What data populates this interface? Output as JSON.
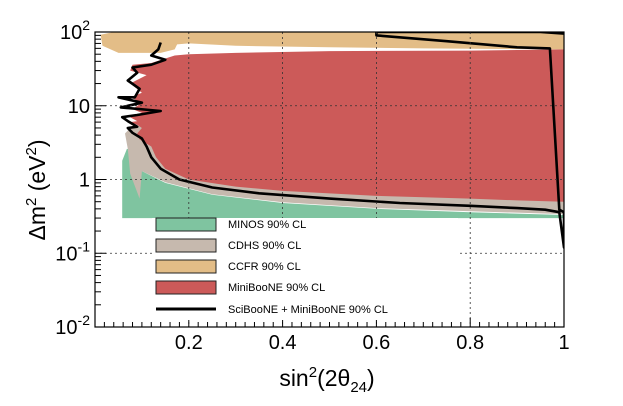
{
  "chart_data": {
    "type": "exclusion-regions",
    "title": "",
    "xlabel": {
      "base": "sin",
      "sup": "2",
      "mid": "(2θ",
      "sub": "24",
      "end": ")"
    },
    "ylabel": {
      "pre": "Δm",
      "sup1": "2",
      "mid": " (eV",
      "sup2": "2",
      "end": ")"
    },
    "x_scale": "linear",
    "y_scale": "log",
    "xlim": [
      0.0,
      1.0
    ],
    "ylim": [
      0.01,
      100
    ],
    "x_ticks": [
      {
        "value": 0.2,
        "label": "0.2"
      },
      {
        "value": 0.4,
        "label": "0.4"
      },
      {
        "value": 0.6,
        "label": "0.6"
      },
      {
        "value": 0.8,
        "label": "0.8"
      },
      {
        "value": 1.0,
        "label": "1"
      }
    ],
    "y_ticks": [
      {
        "value": 0.01,
        "base": "10",
        "exp": "-2"
      },
      {
        "value": 0.1,
        "base": "10",
        "exp": "-1"
      },
      {
        "value": 1,
        "label": "1"
      },
      {
        "value": 10,
        "label": "10"
      },
      {
        "value": 100,
        "base": "10",
        "exp": "2"
      }
    ],
    "grid": "dotted",
    "legend_position": "bottom-left",
    "series": [
      {
        "id": "minos",
        "name": "MINOS 90% CL",
        "style": "fill",
        "color": "#7fc4a0",
        "boundary": [
          [
            0.058,
            0.3
          ],
          [
            0.058,
            1.8
          ],
          [
            0.068,
            2.6
          ],
          [
            0.09,
            2.5
          ],
          [
            0.1,
            1.3
          ],
          [
            0.15,
            0.9
          ],
          [
            0.25,
            0.62
          ],
          [
            0.4,
            0.48
          ],
          [
            0.6,
            0.4
          ],
          [
            0.8,
            0.36
          ],
          [
            1.0,
            0.33
          ],
          [
            1.0,
            0.3
          ]
        ]
      },
      {
        "id": "cdhs",
        "name": "CDHS 90% CL",
        "style": "fill",
        "color": "#c6b9ae",
        "boundary": [
          [
            0.095,
            0.55
          ],
          [
            0.075,
            1.2
          ],
          [
            0.07,
            2.6
          ],
          [
            0.064,
            4.2
          ],
          [
            0.075,
            5.0
          ],
          [
            0.09,
            5.3
          ],
          [
            0.11,
            5.8
          ],
          [
            0.2,
            7.0
          ],
          [
            0.3,
            6.0
          ],
          [
            0.5,
            5.0
          ],
          [
            0.75,
            4.5
          ],
          [
            1.0,
            4.2
          ],
          [
            1.0,
            0.34
          ],
          [
            0.8,
            0.37
          ],
          [
            0.6,
            0.41
          ],
          [
            0.4,
            0.49
          ],
          [
            0.25,
            0.63
          ],
          [
            0.15,
            0.92
          ],
          [
            0.1,
            1.3
          ],
          [
            0.095,
            0.55
          ]
        ]
      },
      {
        "id": "ccfr",
        "name": "CCFR 90% CL",
        "style": "fill",
        "color": "#e3bd87",
        "boundary": [
          [
            0.012,
            100
          ],
          [
            0.04,
            100
          ],
          [
            0.012,
            92
          ],
          [
            0.016,
            65
          ],
          [
            0.05,
            52
          ],
          [
            0.14,
            52
          ],
          [
            0.17,
            58
          ],
          [
            0.175,
            68
          ],
          [
            0.2,
            70
          ],
          [
            0.3,
            65
          ],
          [
            0.5,
            62
          ],
          [
            0.7,
            60
          ],
          [
            1.0,
            58
          ],
          [
            1.0,
            100
          ]
        ]
      },
      {
        "id": "miniboone",
        "name": "MiniBooNE 90% CL",
        "style": "fill",
        "color": "#cc5a59",
        "boundary": [
          [
            0.17,
            48
          ],
          [
            0.12,
            38
          ],
          [
            0.08,
            36
          ],
          [
            0.075,
            30
          ],
          [
            0.11,
            26
          ],
          [
            0.075,
            20
          ],
          [
            0.1,
            15
          ],
          [
            0.075,
            13
          ],
          [
            0.1,
            11
          ],
          [
            0.08,
            9
          ],
          [
            0.1,
            8
          ],
          [
            0.075,
            7
          ],
          [
            0.09,
            6.2
          ],
          [
            0.075,
            6.0
          ],
          [
            0.09,
            5.5
          ],
          [
            0.1,
            5.0
          ],
          [
            0.09,
            4.2
          ],
          [
            0.095,
            3.5
          ],
          [
            0.12,
            2.8
          ],
          [
            0.13,
            2.0
          ],
          [
            0.15,
            1.4
          ],
          [
            0.2,
            1.0
          ],
          [
            0.3,
            0.8
          ],
          [
            0.4,
            0.7
          ],
          [
            0.6,
            0.6
          ],
          [
            0.8,
            0.55
          ],
          [
            0.9,
            0.52
          ],
          [
            1.0,
            0.5
          ],
          [
            1.0,
            58
          ],
          [
            0.8,
            56
          ],
          [
            0.5,
            55
          ],
          [
            0.3,
            52
          ],
          [
            0.2,
            50
          ],
          [
            0.17,
            48
          ]
        ]
      },
      {
        "id": "sciboone",
        "name": "SciBooNE + MiniBooNE 90% CL",
        "style": "line",
        "color": "#000000",
        "boundary": [
          [
            0.14,
            72
          ],
          [
            0.135,
            58
          ],
          [
            0.12,
            48
          ],
          [
            0.15,
            42
          ],
          [
            0.12,
            36
          ],
          [
            0.08,
            33
          ],
          [
            0.09,
            28
          ],
          [
            0.07,
            22
          ],
          [
            0.095,
            17
          ],
          [
            0.085,
            13
          ],
          [
            0.05,
            13
          ],
          [
            0.1,
            11
          ],
          [
            0.055,
            9.5
          ],
          [
            0.14,
            8.5
          ],
          [
            0.09,
            7.5
          ],
          [
            0.058,
            7.0
          ],
          [
            0.07,
            6.2
          ],
          [
            0.09,
            5.2
          ],
          [
            0.07,
            5.0
          ],
          [
            0.08,
            4.3
          ],
          [
            0.1,
            3.6
          ],
          [
            0.11,
            2.8
          ],
          [
            0.12,
            2.0
          ],
          [
            0.14,
            1.4
          ],
          [
            0.18,
            1.0
          ],
          [
            0.25,
            0.78
          ],
          [
            0.35,
            0.65
          ],
          [
            0.5,
            0.55
          ],
          [
            0.65,
            0.48
          ],
          [
            0.8,
            0.44
          ],
          [
            0.9,
            0.41
          ],
          [
            0.96,
            0.39
          ],
          [
            0.99,
            0.36
          ],
          [
            1.0,
            0.12
          ],
          [
            1.0,
            0.36
          ],
          [
            0.99,
            0.39
          ],
          [
            0.97,
            60
          ],
          [
            0.9,
            62
          ],
          [
            0.75,
            75
          ],
          [
            0.6,
            90
          ],
          [
            0.6,
            100
          ],
          [
            0.95,
            100
          ],
          [
            1.0,
            95
          ]
        ]
      }
    ]
  }
}
